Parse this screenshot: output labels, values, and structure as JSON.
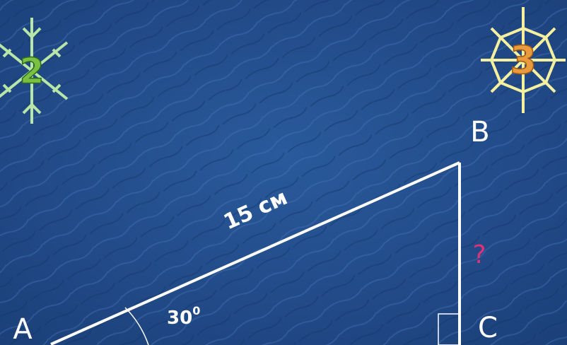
{
  "vertices": {
    "a": "A",
    "b": "B",
    "c": "C"
  },
  "hypotenuse_label": "15 см",
  "angle_label": {
    "value": "30",
    "sup": "0"
  },
  "unknown_label": "?",
  "snowflakes": [
    "2",
    "3"
  ]
}
